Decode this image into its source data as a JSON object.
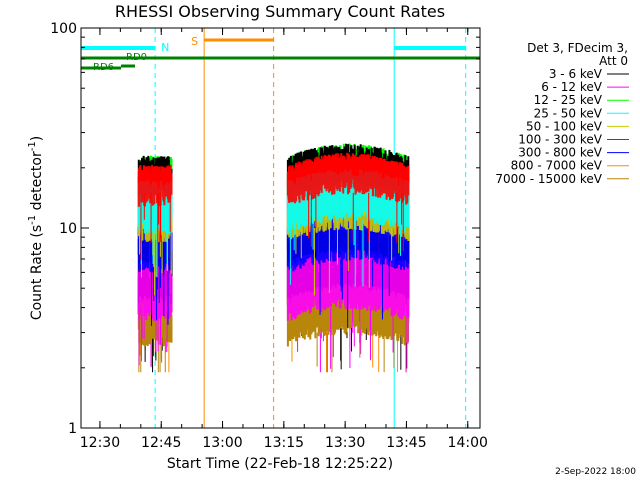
{
  "chart_data": {
    "type": "line",
    "title": "RHESSI Observing Summary Count Rates",
    "xlabel": "Start Time (22-Feb-18 12:25:22)",
    "ylabel_main": "Count Rate (s",
    "ylabel_sup": "-1",
    "ylabel_mid": " detector",
    "ylabel_end": ")",
    "yscale": "log",
    "ylim": [
      1,
      100
    ],
    "xlim": [
      "12:25:22",
      "14:03:00"
    ],
    "x_ticks": [
      "12:30",
      "12:45",
      "13:00",
      "13:15",
      "13:30",
      "13:45",
      "14:00"
    ],
    "y_ticks": [
      "1",
      "10",
      "100"
    ],
    "legend": {
      "placement": "right",
      "header": [
        "Det 3, FDecim 3,",
        "Att 0"
      ]
    },
    "series": [
      {
        "name": "3 - 6 keV",
        "color": "#000000",
        "level": [
          4,
          20
        ]
      },
      {
        "name": "6 - 12 keV",
        "color": "#ff00ff",
        "level": [
          4,
          6
        ]
      },
      {
        "name": "12 - 25 keV",
        "color": "#00ff00",
        "level": [
          15,
          20
        ]
      },
      {
        "name": "25 - 50 keV",
        "color": "#00ffff",
        "level": [
          11,
          15
        ]
      },
      {
        "name": "50 - 100 keV",
        "color": "#cccc00",
        "level": [
          10,
          13
        ]
      },
      {
        "name": "100 - 300 keV",
        "color": "#ff0000",
        "level": [
          15,
          18
        ]
      },
      {
        "name": "300 - 800 keV",
        "color": "#0000ff",
        "level": [
          7,
          9
        ]
      },
      {
        "name": "800 - 7000 keV",
        "color": "#ff8c00",
        "level": [
          4,
          5
        ]
      },
      {
        "name": "7000 - 15000 keV",
        "color": "#b8860b",
        "level": [
          3,
          4
        ]
      }
    ],
    "data_intervals": [
      {
        "start": "12:39:30",
        "end": "12:47:30"
      },
      {
        "start": "13:16:00",
        "end": "13:45:30"
      }
    ],
    "annotations": {
      "night_label": "N",
      "night_intervals": [
        [
          "12:25:22",
          "12:43:30"
        ],
        [
          "13:42:00",
          "13:59:30"
        ]
      ],
      "saa_label": "S",
      "saa_intervals": [
        [
          "12:55:30",
          "13:12:30"
        ]
      ],
      "rd_labels": [
        "RD0",
        "RD6"
      ]
    }
  },
  "timestamp": "2-Sep-2022 18:00"
}
